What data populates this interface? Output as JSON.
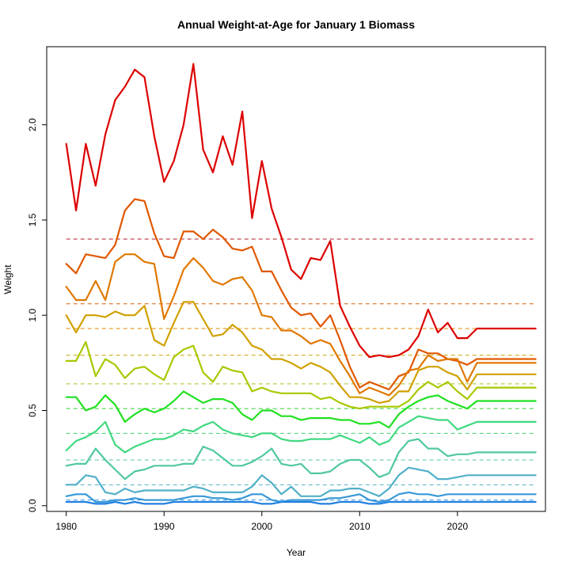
{
  "chart_data": {
    "type": "line",
    "title": "Annual Weight-at-Age for January 1 Biomass",
    "xlabel": "Year",
    "ylabel": "Weight",
    "xlim": [
      1978,
      2029
    ],
    "ylim": [
      -0.03,
      2.41
    ],
    "x_ticks": [
      1980,
      1990,
      2000,
      2010,
      2020
    ],
    "y_ticks": [
      0.0,
      0.5,
      1.0,
      1.5,
      2.0
    ],
    "y_tick_labels": [
      "0.0",
      "0.5",
      "1.0",
      "1.5",
      "2.0"
    ],
    "grid": false,
    "legend": "none",
    "x": [
      1980,
      1981,
      1982,
      1983,
      1984,
      1985,
      1986,
      1987,
      1988,
      1989,
      1990,
      1991,
      1992,
      1993,
      1994,
      1995,
      1996,
      1997,
      1998,
      1999,
      2000,
      2001,
      2002,
      2003,
      2004,
      2005,
      2006,
      2007,
      2008,
      2009,
      2010,
      2011,
      2012,
      2013,
      2014,
      2015,
      2016,
      2017,
      2018,
      2019,
      2020,
      2021,
      2022,
      2023,
      2024,
      2025,
      2026,
      2027,
      2028
    ],
    "reference_lines": [
      {
        "y": 1.4,
        "color": "#b2182b"
      },
      {
        "y": 1.06,
        "color": "#d95f0e"
      },
      {
        "y": 0.93,
        "color": "#e08a00"
      },
      {
        "y": 0.79,
        "color": "#c8a000"
      },
      {
        "y": 0.64,
        "color": "#a8c020"
      },
      {
        "y": 0.51,
        "color": "#30d030"
      },
      {
        "y": 0.38,
        "color": "#40d070"
      },
      {
        "y": 0.24,
        "color": "#50c8a0"
      },
      {
        "y": 0.11,
        "color": "#50b0c8"
      },
      {
        "y": 0.03,
        "color": "#3090e0"
      }
    ],
    "series": [
      {
        "color": "#dd0000",
        "values": [
          1.9,
          1.55,
          1.9,
          1.68,
          1.95,
          2.13,
          2.2,
          2.29,
          2.25,
          1.94,
          1.7,
          1.81,
          2.0,
          2.32,
          1.87,
          1.75,
          1.94,
          1.79,
          2.07,
          1.51,
          1.81,
          1.56,
          1.41,
          1.24,
          1.19,
          1.3,
          1.29,
          1.39,
          1.05,
          0.94,
          0.84,
          0.78,
          0.79,
          0.78,
          0.79,
          0.82,
          0.89,
          1.03,
          0.91,
          0.96,
          0.88,
          0.88,
          0.93,
          0.93,
          0.93,
          0.93,
          0.93,
          0.93,
          0.93
        ]
      },
      {
        "color": "#e05800",
        "values": [
          1.27,
          1.22,
          1.32,
          1.31,
          1.3,
          1.37,
          1.55,
          1.61,
          1.6,
          1.43,
          1.31,
          1.3,
          1.44,
          1.44,
          1.4,
          1.45,
          1.41,
          1.35,
          1.34,
          1.36,
          1.23,
          1.23,
          1.13,
          1.04,
          1.0,
          1.01,
          0.94,
          1.0,
          0.87,
          0.73,
          0.62,
          0.65,
          0.63,
          0.61,
          0.68,
          0.7,
          0.82,
          0.8,
          0.8,
          0.77,
          0.76,
          0.74,
          0.77,
          0.77,
          0.77,
          0.77,
          0.77,
          0.77,
          0.77
        ]
      },
      {
        "color": "#e07800",
        "values": [
          1.15,
          1.08,
          1.08,
          1.18,
          1.08,
          1.28,
          1.32,
          1.32,
          1.28,
          1.27,
          0.98,
          1.1,
          1.24,
          1.3,
          1.25,
          1.18,
          1.16,
          1.19,
          1.2,
          1.13,
          1.0,
          0.99,
          0.92,
          0.92,
          0.89,
          0.85,
          0.87,
          0.85,
          0.76,
          0.68,
          0.59,
          0.62,
          0.6,
          0.58,
          0.63,
          0.71,
          0.72,
          0.79,
          0.76,
          0.77,
          0.77,
          0.65,
          0.75,
          0.75,
          0.75,
          0.75,
          0.75,
          0.75,
          0.75
        ]
      },
      {
        "color": "#d0a000",
        "values": [
          1.0,
          0.91,
          1.0,
          1.0,
          0.99,
          1.02,
          1.0,
          1.0,
          1.05,
          0.87,
          0.84,
          0.96,
          1.07,
          1.07,
          0.98,
          0.89,
          0.9,
          0.95,
          0.91,
          0.84,
          0.82,
          0.77,
          0.77,
          0.75,
          0.72,
          0.75,
          0.73,
          0.7,
          0.63,
          0.57,
          0.57,
          0.56,
          0.54,
          0.55,
          0.6,
          0.6,
          0.71,
          0.73,
          0.73,
          0.7,
          0.68,
          0.61,
          0.69,
          0.69,
          0.69,
          0.69,
          0.69,
          0.69,
          0.69
        ]
      },
      {
        "color": "#a8c800",
        "values": [
          0.76,
          0.76,
          0.86,
          0.68,
          0.77,
          0.74,
          0.67,
          0.72,
          0.73,
          0.69,
          0.66,
          0.78,
          0.82,
          0.84,
          0.7,
          0.65,
          0.73,
          0.71,
          0.7,
          0.6,
          0.62,
          0.6,
          0.59,
          0.59,
          0.59,
          0.59,
          0.56,
          0.57,
          0.54,
          0.52,
          0.51,
          0.52,
          0.52,
          0.52,
          0.52,
          0.55,
          0.61,
          0.65,
          0.62,
          0.65,
          0.6,
          0.56,
          0.62,
          0.62,
          0.62,
          0.62,
          0.62,
          0.62,
          0.62
        ]
      },
      {
        "color": "#20e020",
        "values": [
          0.57,
          0.57,
          0.5,
          0.52,
          0.58,
          0.53,
          0.44,
          0.48,
          0.51,
          0.49,
          0.51,
          0.55,
          0.6,
          0.57,
          0.54,
          0.56,
          0.56,
          0.54,
          0.48,
          0.45,
          0.5,
          0.5,
          0.47,
          0.47,
          0.45,
          0.46,
          0.46,
          0.46,
          0.45,
          0.45,
          0.43,
          0.43,
          0.44,
          0.41,
          0.48,
          0.52,
          0.55,
          0.57,
          0.58,
          0.55,
          0.53,
          0.51,
          0.55,
          0.55,
          0.55,
          0.55,
          0.55,
          0.55,
          0.55
        ]
      },
      {
        "color": "#40d880",
        "values": [
          0.29,
          0.34,
          0.36,
          0.39,
          0.44,
          0.32,
          0.28,
          0.31,
          0.33,
          0.35,
          0.35,
          0.37,
          0.4,
          0.39,
          0.42,
          0.44,
          0.4,
          0.38,
          0.37,
          0.36,
          0.38,
          0.38,
          0.35,
          0.34,
          0.34,
          0.35,
          0.35,
          0.35,
          0.37,
          0.35,
          0.33,
          0.36,
          0.32,
          0.34,
          0.41,
          0.44,
          0.47,
          0.46,
          0.45,
          0.45,
          0.4,
          0.42,
          0.44,
          0.44,
          0.44,
          0.44,
          0.44,
          0.44,
          0.44
        ]
      },
      {
        "color": "#50c8a0",
        "values": [
          0.21,
          0.22,
          0.22,
          0.3,
          0.24,
          0.19,
          0.14,
          0.18,
          0.19,
          0.21,
          0.21,
          0.21,
          0.22,
          0.22,
          0.31,
          0.29,
          0.25,
          0.21,
          0.21,
          0.23,
          0.26,
          0.3,
          0.22,
          0.21,
          0.22,
          0.17,
          0.17,
          0.18,
          0.22,
          0.24,
          0.24,
          0.2,
          0.15,
          0.17,
          0.28,
          0.34,
          0.35,
          0.3,
          0.3,
          0.26,
          0.27,
          0.27,
          0.28,
          0.28,
          0.28,
          0.28,
          0.28,
          0.28,
          0.28
        ]
      },
      {
        "color": "#50b0c8",
        "values": [
          0.11,
          0.11,
          0.16,
          0.15,
          0.07,
          0.06,
          0.09,
          0.07,
          0.08,
          0.08,
          0.08,
          0.08,
          0.08,
          0.1,
          0.09,
          0.07,
          0.07,
          0.07,
          0.07,
          0.1,
          0.16,
          0.12,
          0.06,
          0.1,
          0.05,
          0.05,
          0.05,
          0.08,
          0.08,
          0.09,
          0.09,
          0.07,
          0.05,
          0.09,
          0.16,
          0.2,
          0.19,
          0.18,
          0.14,
          0.14,
          0.15,
          0.16,
          0.16,
          0.16,
          0.16,
          0.16,
          0.16,
          0.16,
          0.16
        ]
      },
      {
        "color": "#3898d8",
        "values": [
          0.05,
          0.06,
          0.06,
          0.02,
          0.02,
          0.03,
          0.03,
          0.04,
          0.03,
          0.03,
          0.03,
          0.03,
          0.04,
          0.05,
          0.05,
          0.04,
          0.04,
          0.03,
          0.04,
          0.06,
          0.06,
          0.03,
          0.02,
          0.03,
          0.03,
          0.03,
          0.03,
          0.04,
          0.04,
          0.05,
          0.06,
          0.03,
          0.02,
          0.03,
          0.06,
          0.07,
          0.06,
          0.06,
          0.05,
          0.06,
          0.06,
          0.06,
          0.06,
          0.06,
          0.06,
          0.06,
          0.06,
          0.06,
          0.06
        ]
      },
      {
        "color": "#2080e0",
        "values": [
          0.02,
          0.02,
          0.02,
          0.01,
          0.01,
          0.02,
          0.01,
          0.02,
          0.01,
          0.01,
          0.01,
          0.02,
          0.02,
          0.02,
          0.02,
          0.02,
          0.02,
          0.02,
          0.02,
          0.02,
          0.01,
          0.01,
          0.02,
          0.02,
          0.02,
          0.02,
          0.01,
          0.01,
          0.02,
          0.02,
          0.02,
          0.01,
          0.01,
          0.02,
          0.02,
          0.02,
          0.02,
          0.02,
          0.02,
          0.02,
          0.02,
          0.02,
          0.02,
          0.02,
          0.02,
          0.02,
          0.02,
          0.02,
          0.02
        ]
      }
    ]
  }
}
